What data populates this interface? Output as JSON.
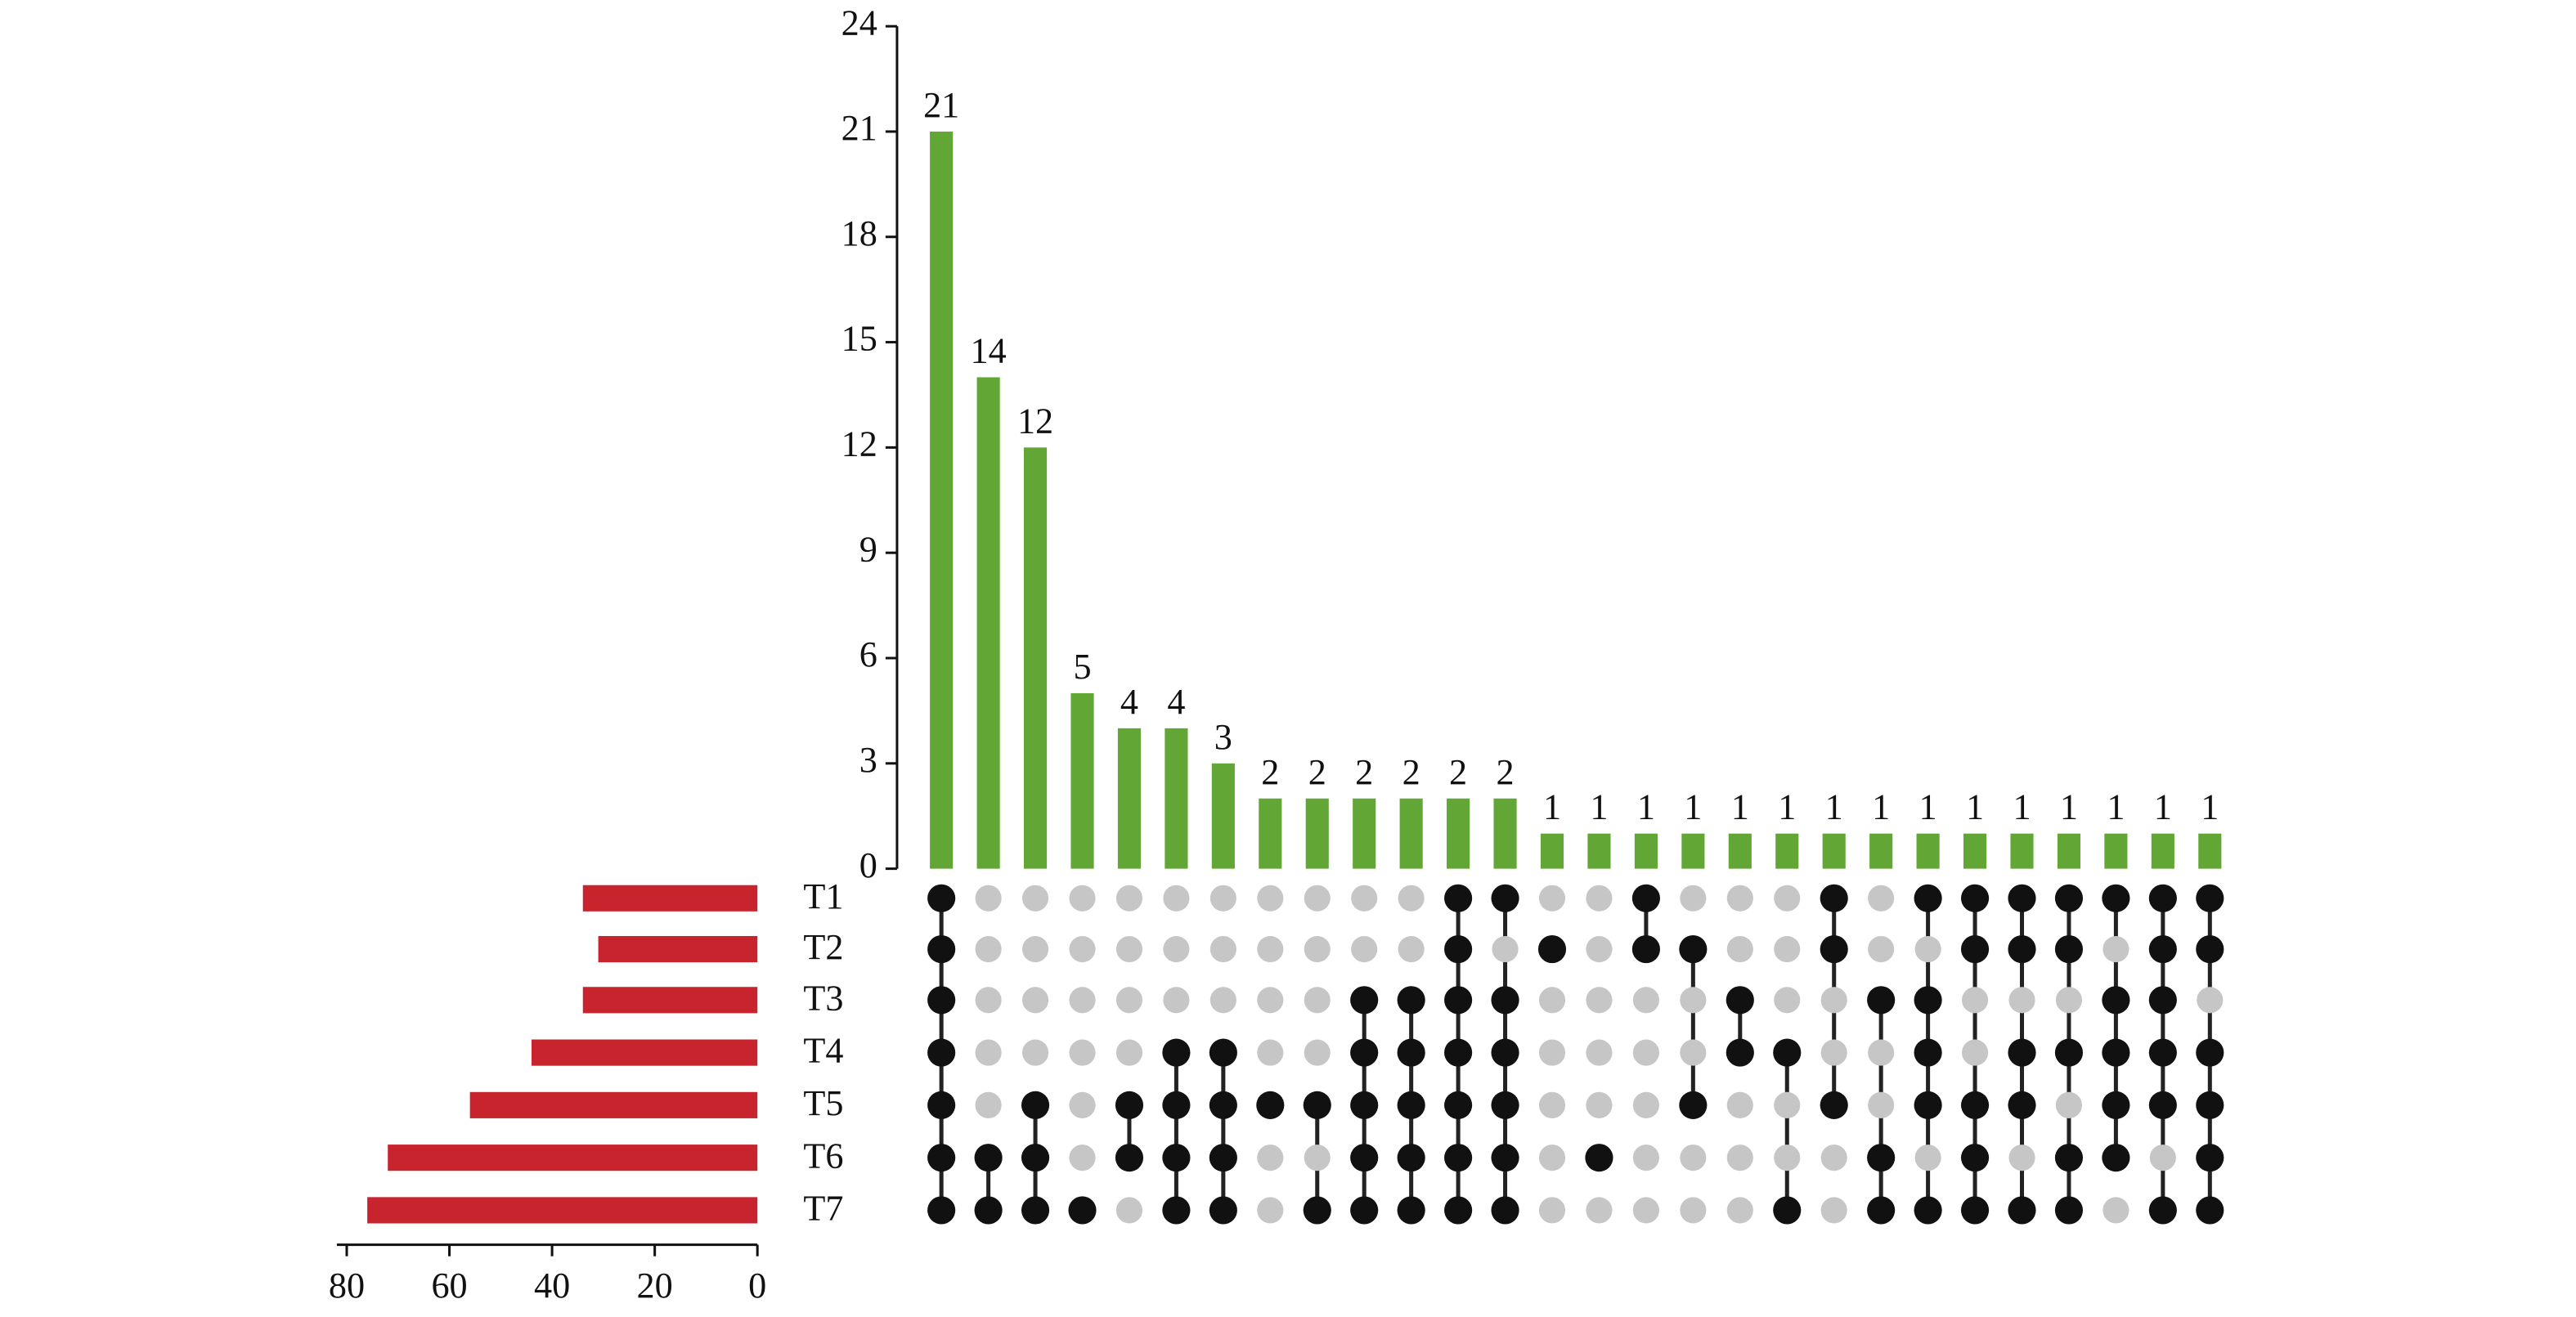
{
  "chart_data": {
    "type": "upset",
    "sets": [
      "T1",
      "T2",
      "T3",
      "T4",
      "T5",
      "T6",
      "T7"
    ],
    "set_sizes": [
      34,
      31,
      34,
      44,
      56,
      72,
      76
    ],
    "set_color": "#c8242e",
    "xlim": [
      80,
      0
    ],
    "xticks": [
      80,
      60,
      40,
      20,
      0
    ],
    "values": [
      21,
      14,
      12,
      5,
      4,
      4,
      3,
      2,
      2,
      2,
      2,
      2,
      2,
      1,
      1,
      1,
      1,
      1,
      1,
      1,
      1,
      1,
      1,
      1,
      1,
      1,
      1,
      1
    ],
    "color": "#62a636",
    "ylim": [
      0,
      24
    ],
    "yticks": [
      0,
      3,
      6,
      9,
      12,
      15,
      18,
      21,
      24
    ],
    "memberships": [
      [
        1,
        1,
        1,
        1,
        1,
        1,
        1
      ],
      [
        0,
        0,
        0,
        0,
        0,
        1,
        1
      ],
      [
        0,
        0,
        0,
        0,
        1,
        1,
        1
      ],
      [
        0,
        0,
        0,
        0,
        0,
        0,
        1
      ],
      [
        0,
        0,
        0,
        0,
        1,
        1,
        0
      ],
      [
        0,
        0,
        0,
        1,
        1,
        1,
        1
      ],
      [
        0,
        0,
        0,
        1,
        1,
        1,
        1
      ],
      [
        0,
        0,
        0,
        0,
        1,
        0,
        0
      ],
      [
        0,
        0,
        0,
        0,
        1,
        0,
        1
      ],
      [
        0,
        0,
        1,
        1,
        1,
        1,
        1
      ],
      [
        0,
        0,
        1,
        1,
        1,
        1,
        1
      ],
      [
        1,
        1,
        1,
        1,
        1,
        1,
        1
      ],
      [
        1,
        0,
        1,
        1,
        1,
        1,
        1
      ],
      [
        0,
        1,
        0,
        0,
        0,
        0,
        0
      ],
      [
        0,
        0,
        0,
        0,
        0,
        1,
        0
      ],
      [
        1,
        1,
        0,
        0,
        0,
        0,
        0
      ],
      [
        0,
        1,
        0,
        0,
        1,
        0,
        0
      ],
      [
        0,
        0,
        1,
        1,
        0,
        0,
        0
      ],
      [
        0,
        0,
        0,
        1,
        0,
        0,
        1
      ],
      [
        1,
        1,
        0,
        0,
        1,
        0,
        0
      ],
      [
        0,
        0,
        1,
        0,
        0,
        1,
        1
      ],
      [
        1,
        0,
        1,
        1,
        1,
        0,
        1
      ],
      [
        1,
        1,
        0,
        0,
        1,
        1,
        1
      ],
      [
        1,
        1,
        0,
        1,
        1,
        0,
        1
      ],
      [
        1,
        1,
        0,
        1,
        0,
        1,
        1
      ],
      [
        1,
        0,
        1,
        1,
        1,
        1,
        0
      ],
      [
        1,
        1,
        1,
        1,
        1,
        0,
        1
      ],
      [
        1,
        1,
        0,
        1,
        1,
        1,
        1
      ]
    ]
  }
}
